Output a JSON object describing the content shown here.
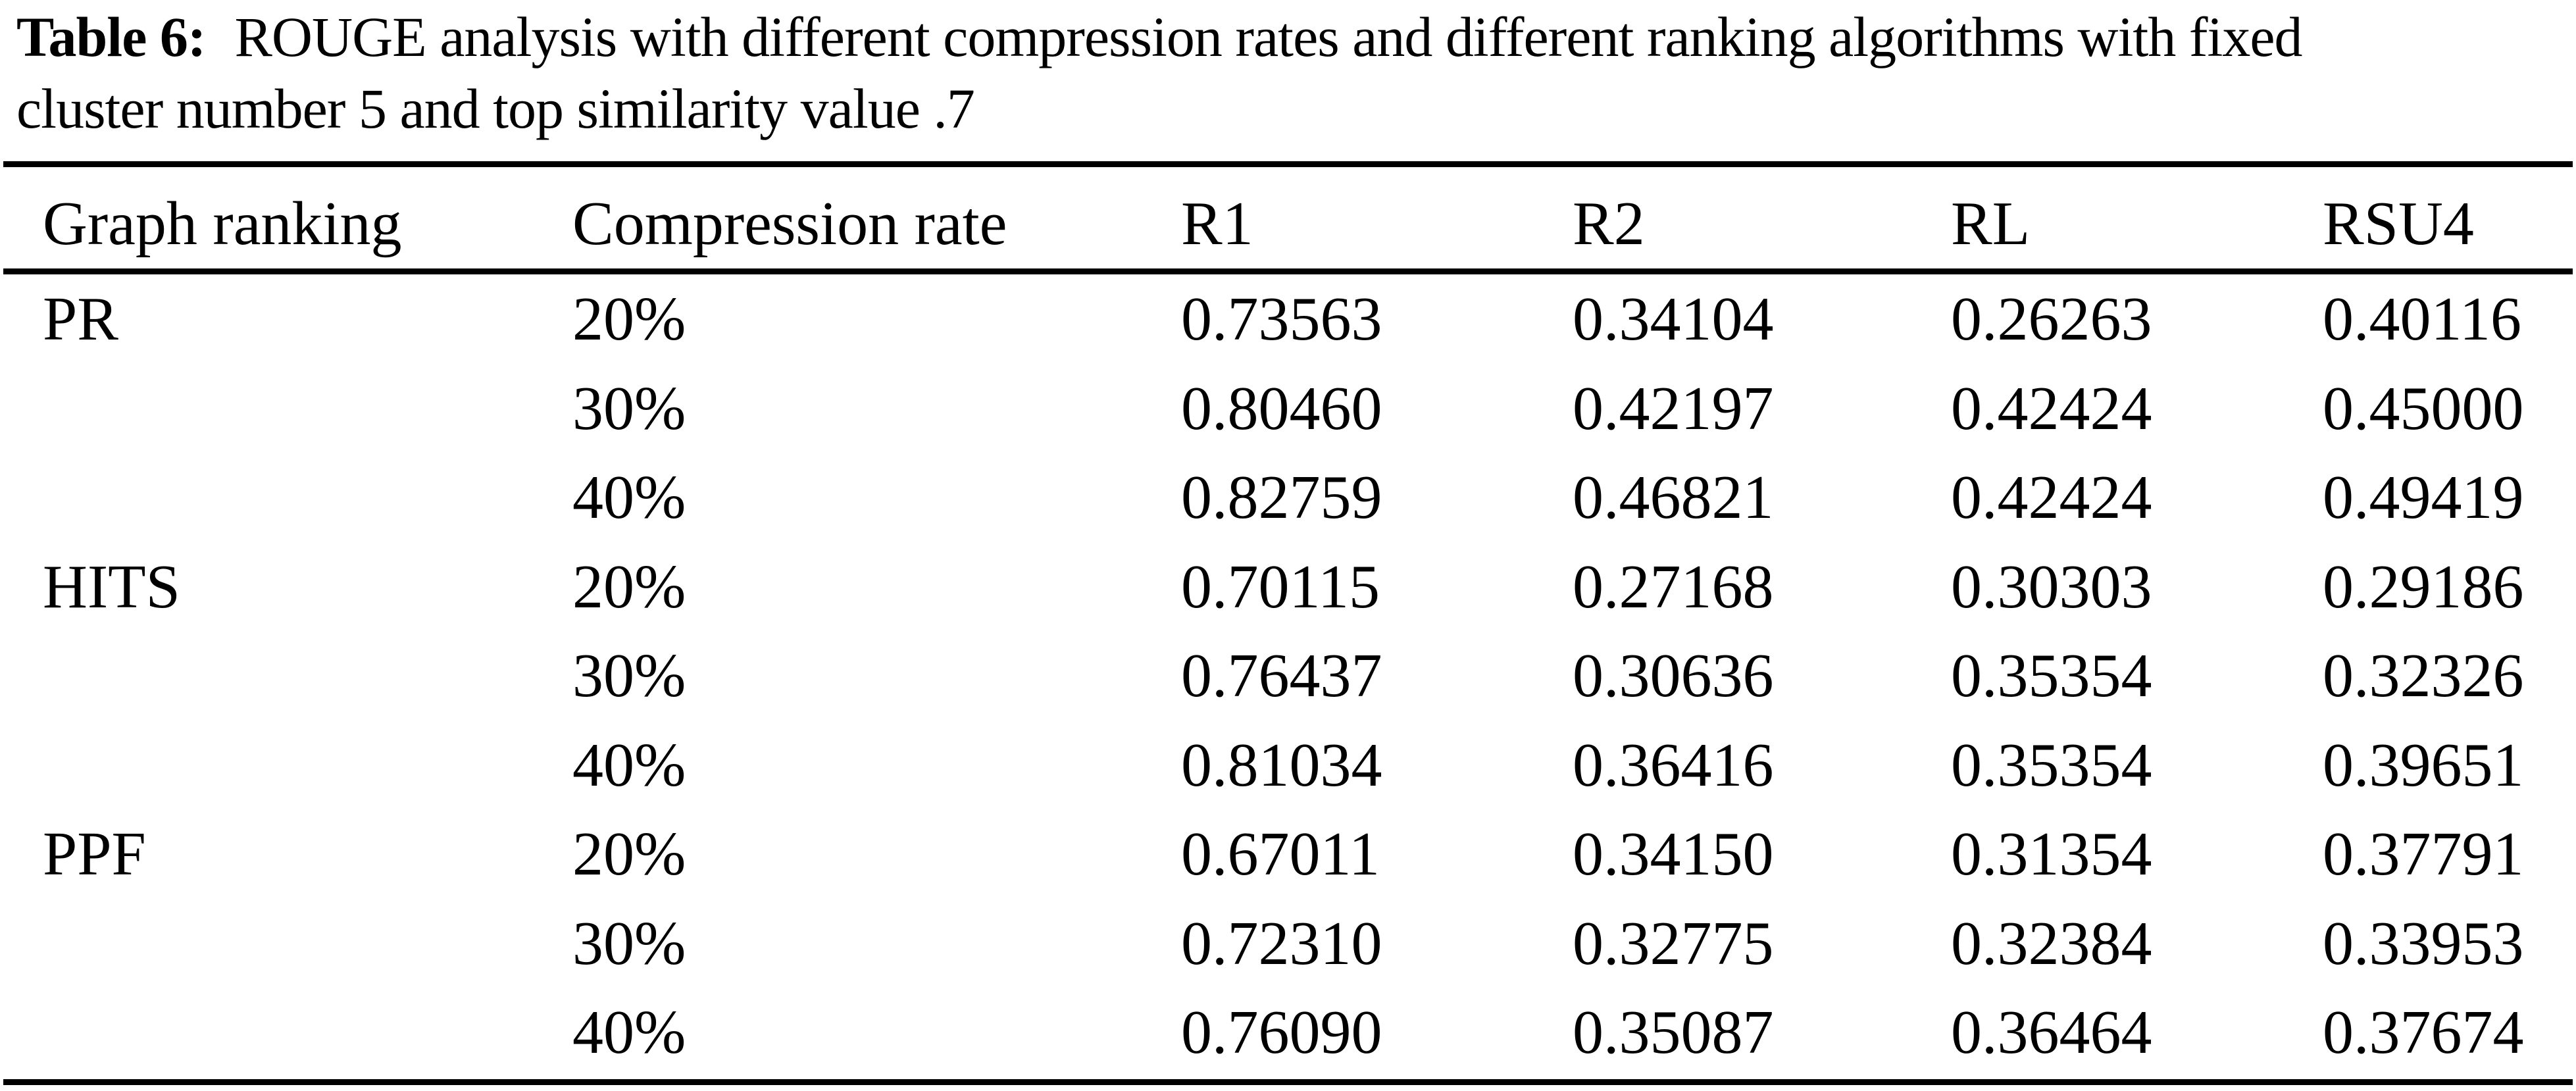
{
  "caption": {
    "label": "Table 6:",
    "line1": "ROUGE analysis with different compression rates and different ranking algorithms with fixed",
    "line2": "cluster number 5 and top similarity value .7"
  },
  "table": {
    "headers": [
      "Graph ranking",
      "Compression rate",
      "R1",
      "R2",
      "RL",
      "RSU4"
    ],
    "rows": [
      [
        "PR",
        "20%",
        "0.73563",
        "0.34104",
        "0.26263",
        "0.40116"
      ],
      [
        "",
        "30%",
        "0.80460",
        "0.42197",
        "0.42424",
        "0.45000"
      ],
      [
        "",
        "40%",
        "0.82759",
        "0.46821",
        "0.42424",
        "0.49419"
      ],
      [
        "HITS",
        "20%",
        "0.70115",
        "0.27168",
        "0.30303",
        "0.29186"
      ],
      [
        "",
        "30%",
        "0.76437",
        "0.30636",
        "0.35354",
        "0.32326"
      ],
      [
        "",
        "40%",
        "0.81034",
        "0.36416",
        "0.35354",
        "0.39651"
      ],
      [
        "PPF",
        "20%",
        "0.67011",
        "0.34150",
        "0.31354",
        "0.37791"
      ],
      [
        "",
        "30%",
        "0.72310",
        "0.32775",
        "0.32384",
        "0.33953"
      ],
      [
        "",
        "40%",
        "0.76090",
        "0.35087",
        "0.36464",
        "0.37674"
      ]
    ]
  },
  "colors": {
    "text": "#000000",
    "background": "#ffffff",
    "rule": "#000000"
  }
}
